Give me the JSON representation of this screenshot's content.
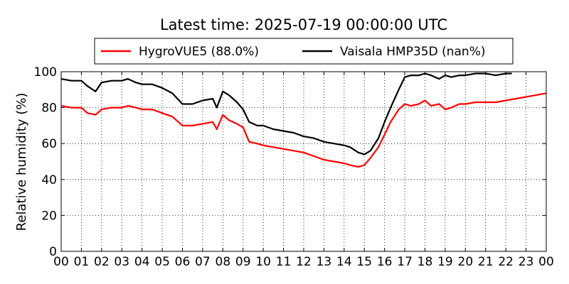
{
  "chart_data": {
    "type": "line",
    "title": "Latest time: 2025-07-19 00:00:00 UTC",
    "xlabel": "",
    "ylabel": "Relative humidity (%)",
    "ylim": [
      0,
      100
    ],
    "xlim": [
      0,
      24
    ],
    "x_ticks": [
      "00",
      "01",
      "02",
      "03",
      "04",
      "05",
      "06",
      "07",
      "08",
      "09",
      "10",
      "11",
      "12",
      "13",
      "14",
      "15",
      "16",
      "17",
      "18",
      "19",
      "20",
      "21",
      "22",
      "23",
      "00"
    ],
    "y_ticks": [
      "0",
      "20",
      "40",
      "60",
      "80",
      "100"
    ],
    "grid": true,
    "legend_position": "top",
    "series": [
      {
        "name": "HygroVUE5 (88.0%)",
        "color": "#ff0000",
        "x": [
          0,
          0.5,
          1,
          1.3,
          1.7,
          2.0,
          2.5,
          3.0,
          3.3,
          3.7,
          4.0,
          4.5,
          5.0,
          5.5,
          6.0,
          6.5,
          7.0,
          7.5,
          7.7,
          8.0,
          8.3,
          8.7,
          9.0,
          9.3,
          9.7,
          10.0,
          10.5,
          11.0,
          11.5,
          12.0,
          12.5,
          13.0,
          13.5,
          14.0,
          14.3,
          14.7,
          15.0,
          15.3,
          15.7,
          16.0,
          16.3,
          16.7,
          17.0,
          17.3,
          17.7,
          18.0,
          18.3,
          18.7,
          19.0,
          19.3,
          19.7,
          20.0,
          20.5,
          21.0,
          21.5,
          22.0,
          22.5,
          23.0,
          23.5,
          24.0
        ],
        "values": [
          81,
          80,
          80,
          77,
          76,
          79,
          80,
          80,
          81,
          80,
          79,
          79,
          77,
          75,
          70,
          70,
          71,
          72,
          68,
          76,
          73,
          71,
          69,
          61,
          60,
          59,
          58,
          57,
          56,
          55,
          53,
          51,
          50,
          49,
          48,
          47,
          48,
          52,
          58,
          65,
          72,
          79,
          82,
          81,
          82,
          84,
          81,
          82,
          79,
          80,
          82,
          82,
          83,
          83,
          83,
          84,
          85,
          86,
          87,
          88
        ]
      },
      {
        "name": "Vaisala HMP35D (nan%)",
        "color": "#000000",
        "x": [
          0,
          0.5,
          1,
          1.3,
          1.7,
          2.0,
          2.5,
          3.0,
          3.3,
          3.7,
          4.0,
          4.5,
          5.0,
          5.5,
          6.0,
          6.5,
          7.0,
          7.5,
          7.7,
          8.0,
          8.3,
          8.7,
          9.0,
          9.3,
          9.7,
          10.0,
          10.5,
          11.0,
          11.5,
          12.0,
          12.5,
          13.0,
          13.5,
          14.0,
          14.3,
          14.7,
          15.0,
          15.3,
          15.7,
          16.0,
          16.3,
          16.7,
          17.0,
          17.3,
          17.7,
          18.0,
          18.3,
          18.7,
          19.0,
          19.3,
          19.7,
          20.0,
          20.5,
          21.0,
          21.5,
          22.0,
          22.3
        ],
        "values": [
          96,
          95,
          95,
          92,
          89,
          94,
          95,
          95,
          96,
          94,
          93,
          93,
          91,
          88,
          82,
          82,
          84,
          85,
          80,
          89,
          87,
          83,
          79,
          72,
          70,
          70,
          68,
          67,
          66,
          64,
          63,
          61,
          60,
          59,
          58,
          55,
          54,
          56,
          63,
          72,
          80,
          90,
          97,
          98,
          98,
          99,
          98,
          96,
          98,
          97,
          98,
          98,
          99,
          99,
          98,
          99,
          99
        ]
      }
    ]
  }
}
